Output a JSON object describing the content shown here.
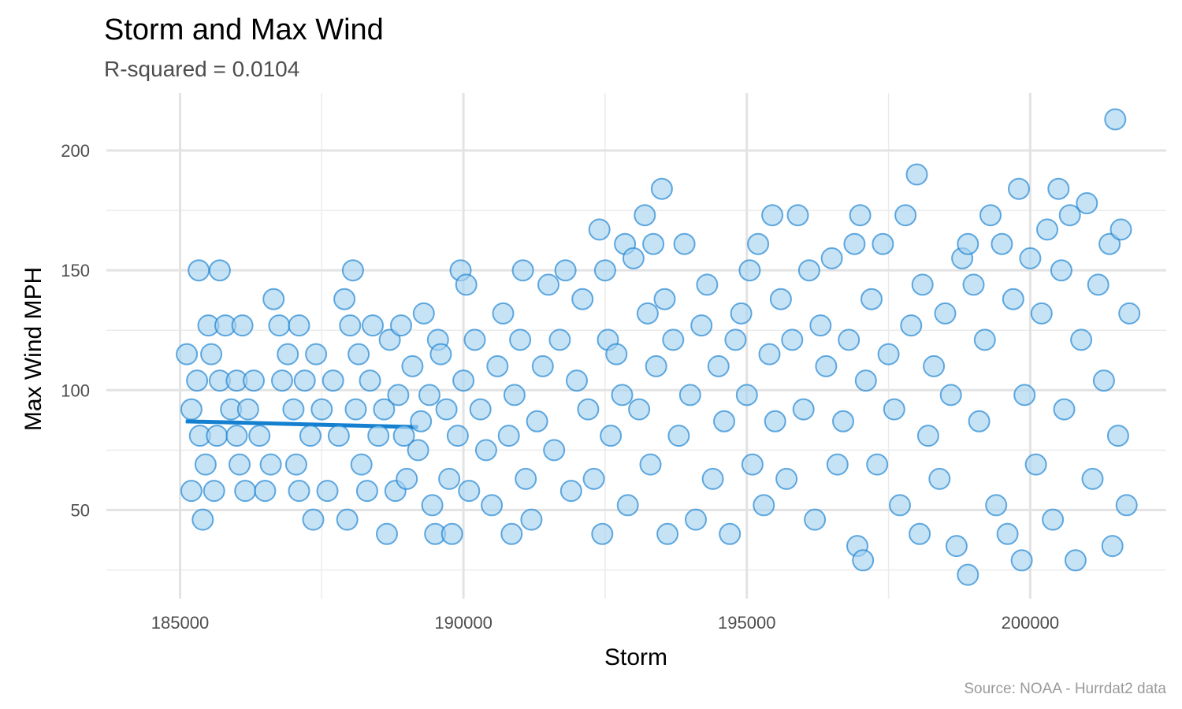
{
  "chart_data": {
    "type": "scatter",
    "title": "Storm and Max Wind",
    "subtitle": "R-squared =  0.0104",
    "xlabel": "Storm",
    "ylabel": "Max Wind MPH",
    "caption": "Source: NOAA - Hurrdat2 data",
    "xlim": [
      183700,
      202400
    ],
    "ylim": [
      13,
      224
    ],
    "xticks": [
      185000,
      190000,
      195000,
      200000
    ],
    "xtick_labels": [
      "185000",
      "190000",
      "195000",
      "200000"
    ],
    "yticks": [
      50,
      100,
      150,
      200
    ],
    "ytick_labels": [
      "50",
      "100",
      "150",
      "200"
    ],
    "grid": true,
    "point_color": "#1580d0",
    "point_fill": "#a8d3f0",
    "fit_line_color": "#1580d0",
    "fit_line": [
      [
        185100,
        87.0
      ],
      [
        189200,
        84.6
      ]
    ],
    "series": [
      {
        "points": [
          [
            185120,
            115
          ],
          [
            185200,
            92
          ],
          [
            185200,
            58
          ],
          [
            185350,
            81
          ],
          [
            185300,
            104
          ],
          [
            185330,
            150
          ],
          [
            185400,
            46
          ],
          [
            185450,
            69
          ],
          [
            185500,
            127
          ],
          [
            185550,
            115
          ],
          [
            185600,
            58
          ],
          [
            185650,
            81
          ],
          [
            185700,
            104
          ],
          [
            185700,
            150
          ],
          [
            185800,
            127
          ],
          [
            185900,
            92
          ],
          [
            186000,
            81
          ],
          [
            186000,
            104
          ],
          [
            186050,
            69
          ],
          [
            186100,
            127
          ],
          [
            186150,
            58
          ],
          [
            186200,
            92
          ],
          [
            186300,
            104
          ],
          [
            186400,
            81
          ],
          [
            186500,
            58
          ],
          [
            186600,
            69
          ],
          [
            186650,
            138
          ],
          [
            186750,
            127
          ],
          [
            186800,
            104
          ],
          [
            186900,
            115
          ],
          [
            187000,
            92
          ],
          [
            187050,
            69
          ],
          [
            187100,
            58
          ],
          [
            187100,
            127
          ],
          [
            187200,
            104
          ],
          [
            187300,
            81
          ],
          [
            187350,
            46
          ],
          [
            187400,
            115
          ],
          [
            187500,
            92
          ],
          [
            187600,
            58
          ],
          [
            187700,
            104
          ],
          [
            187800,
            81
          ],
          [
            187900,
            138
          ],
          [
            187950,
            46
          ],
          [
            188000,
            127
          ],
          [
            188050,
            150
          ],
          [
            188100,
            92
          ],
          [
            188150,
            115
          ],
          [
            188200,
            69
          ],
          [
            188300,
            58
          ],
          [
            188350,
            104
          ],
          [
            188400,
            127
          ],
          [
            188500,
            81
          ],
          [
            188600,
            92
          ],
          [
            188650,
            40
          ],
          [
            188700,
            121
          ],
          [
            188800,
            58
          ],
          [
            188850,
            98
          ],
          [
            188900,
            127
          ],
          [
            188950,
            81
          ],
          [
            189000,
            63
          ],
          [
            189100,
            110
          ],
          [
            189200,
            75
          ],
          [
            189250,
            87
          ],
          [
            189300,
            132
          ],
          [
            189400,
            98
          ],
          [
            189450,
            52
          ],
          [
            189500,
            40
          ],
          [
            189550,
            121
          ],
          [
            189600,
            115
          ],
          [
            189700,
            92
          ],
          [
            189750,
            63
          ],
          [
            189800,
            40
          ],
          [
            189900,
            81
          ],
          [
            189950,
            150
          ],
          [
            190000,
            104
          ],
          [
            190050,
            144
          ],
          [
            190100,
            58
          ],
          [
            190200,
            121
          ],
          [
            190300,
            92
          ],
          [
            190400,
            75
          ],
          [
            190500,
            52
          ],
          [
            190600,
            110
          ],
          [
            190700,
            132
          ],
          [
            190800,
            81
          ],
          [
            190850,
            40
          ],
          [
            190900,
            98
          ],
          [
            191000,
            121
          ],
          [
            191050,
            150
          ],
          [
            191100,
            63
          ],
          [
            191200,
            46
          ],
          [
            191300,
            87
          ],
          [
            191400,
            110
          ],
          [
            191500,
            144
          ],
          [
            191600,
            75
          ],
          [
            191700,
            121
          ],
          [
            191800,
            150
          ],
          [
            191900,
            58
          ],
          [
            192000,
            104
          ],
          [
            192100,
            138
          ],
          [
            192200,
            92
          ],
          [
            192300,
            63
          ],
          [
            192400,
            167
          ],
          [
            192450,
            40
          ],
          [
            192500,
            150
          ],
          [
            192550,
            121
          ],
          [
            192600,
            81
          ],
          [
            192700,
            115
          ],
          [
            192800,
            98
          ],
          [
            192850,
            161
          ],
          [
            192900,
            52
          ],
          [
            193000,
            155
          ],
          [
            193100,
            92
          ],
          [
            193200,
            173
          ],
          [
            193250,
            132
          ],
          [
            193300,
            69
          ],
          [
            193350,
            161
          ],
          [
            193400,
            110
          ],
          [
            193500,
            184
          ],
          [
            193550,
            138
          ],
          [
            193600,
            40
          ],
          [
            193700,
            121
          ],
          [
            193800,
            81
          ],
          [
            193900,
            161
          ],
          [
            194000,
            98
          ],
          [
            194100,
            46
          ],
          [
            194200,
            127
          ],
          [
            194300,
            144
          ],
          [
            194400,
            63
          ],
          [
            194500,
            110
          ],
          [
            194600,
            87
          ],
          [
            194700,
            40
          ],
          [
            194800,
            121
          ],
          [
            194900,
            132
          ],
          [
            195000,
            98
          ],
          [
            195050,
            150
          ],
          [
            195100,
            69
          ],
          [
            195200,
            161
          ],
          [
            195300,
            52
          ],
          [
            195400,
            115
          ],
          [
            195450,
            173
          ],
          [
            195500,
            87
          ],
          [
            195600,
            138
          ],
          [
            195700,
            63
          ],
          [
            195800,
            121
          ],
          [
            195900,
            173
          ],
          [
            196000,
            92
          ],
          [
            196100,
            150
          ],
          [
            196200,
            46
          ],
          [
            196300,
            127
          ],
          [
            196400,
            110
          ],
          [
            196500,
            155
          ],
          [
            196600,
            69
          ],
          [
            196700,
            87
          ],
          [
            196800,
            121
          ],
          [
            196900,
            161
          ],
          [
            196950,
            35
          ],
          [
            197000,
            173
          ],
          [
            197050,
            29
          ],
          [
            197100,
            104
          ],
          [
            197200,
            138
          ],
          [
            197300,
            69
          ],
          [
            197400,
            161
          ],
          [
            197500,
            115
          ],
          [
            197600,
            92
          ],
          [
            197700,
            52
          ],
          [
            197800,
            173
          ],
          [
            197900,
            127
          ],
          [
            198000,
            190
          ],
          [
            198050,
            40
          ],
          [
            198100,
            144
          ],
          [
            198200,
            81
          ],
          [
            198300,
            110
          ],
          [
            198400,
            63
          ],
          [
            198500,
            132
          ],
          [
            198600,
            98
          ],
          [
            198700,
            35
          ],
          [
            198800,
            155
          ],
          [
            198900,
            23
          ],
          [
            198900,
            161
          ],
          [
            199000,
            144
          ],
          [
            199100,
            87
          ],
          [
            199200,
            121
          ],
          [
            199300,
            173
          ],
          [
            199400,
            52
          ],
          [
            199500,
            161
          ],
          [
            199600,
            40
          ],
          [
            199700,
            138
          ],
          [
            199800,
            184
          ],
          [
            199850,
            29
          ],
          [
            199900,
            98
          ],
          [
            200000,
            155
          ],
          [
            200100,
            69
          ],
          [
            200200,
            132
          ],
          [
            200300,
            167
          ],
          [
            200400,
            46
          ],
          [
            200500,
            184
          ],
          [
            200550,
            150
          ],
          [
            200600,
            92
          ],
          [
            200700,
            173
          ],
          [
            200800,
            29
          ],
          [
            200900,
            121
          ],
          [
            201000,
            178
          ],
          [
            201100,
            63
          ],
          [
            201200,
            144
          ],
          [
            201300,
            104
          ],
          [
            201400,
            161
          ],
          [
            201450,
            35
          ],
          [
            201500,
            213
          ],
          [
            201550,
            81
          ],
          [
            201600,
            167
          ],
          [
            201700,
            52
          ],
          [
            201750,
            132
          ]
        ]
      }
    ]
  }
}
